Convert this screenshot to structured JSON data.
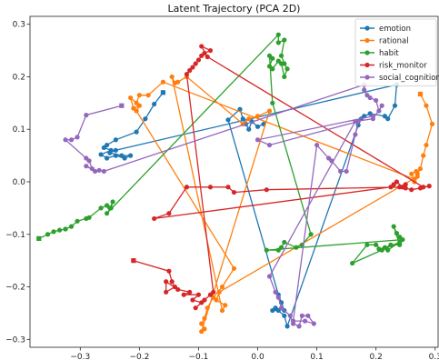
{
  "chart_data": {
    "type": "line",
    "title": "Latent Trajectory (PCA 2D)",
    "xlabel": "",
    "ylabel": "",
    "xlim": [
      -0.385,
      0.305
    ],
    "ylim": [
      -0.315,
      0.315
    ],
    "x_ticks": [
      -0.3,
      -0.2,
      -0.1,
      0.0,
      0.1,
      0.2,
      0.3
    ],
    "x_tick_labels": [
      "−0.3",
      "−0.2",
      "−0.1",
      "0.0",
      "0.1",
      "0.2",
      "0.3"
    ],
    "y_ticks": [
      -0.3,
      -0.2,
      -0.1,
      0.0,
      0.1,
      0.2,
      0.3
    ],
    "y_tick_labels": [
      "−0.3",
      "−0.2",
      "−0.1",
      "0.0",
      "0.1",
      "0.2",
      "0.3"
    ],
    "grid": false,
    "legend_position": "top-right",
    "series": [
      {
        "name": "emotion",
        "color": "#1f77b4",
        "points": [
          [
            -0.16,
            0.17
          ],
          [
            -0.175,
            0.148
          ],
          [
            -0.19,
            0.12
          ],
          [
            -0.205,
            0.095
          ],
          [
            -0.24,
            0.08
          ],
          [
            -0.255,
            0.07
          ],
          [
            -0.26,
            0.065
          ],
          [
            -0.248,
            0.06
          ],
          [
            -0.265,
            0.052
          ],
          [
            -0.255,
            0.045
          ],
          [
            -0.24,
            0.05
          ],
          [
            -0.225,
            0.045
          ],
          [
            -0.215,
            0.05
          ],
          [
            -0.23,
            0.05
          ],
          [
            -0.25,
            0.055
          ],
          [
            -0.24,
            0.06
          ],
          [
            0.235,
            0.185
          ],
          [
            0.232,
            0.145
          ],
          [
            0.22,
            0.12
          ],
          [
            0.215,
            0.125
          ],
          [
            0.19,
            0.13
          ],
          [
            0.18,
            0.125
          ],
          [
            0.175,
            0.12
          ],
          [
            0.17,
            0.108
          ],
          [
            0.05,
            -0.275
          ],
          [
            0.045,
            -0.255
          ],
          [
            0.035,
            -0.245
          ],
          [
            0.025,
            -0.245
          ],
          [
            0.03,
            -0.24
          ],
          [
            0.045,
            -0.245
          ],
          [
            0.04,
            -0.23
          ],
          [
            0.035,
            -0.215
          ],
          [
            -0.05,
            0.118
          ],
          [
            -0.03,
            0.138
          ],
          [
            -0.025,
            0.12
          ],
          [
            -0.02,
            0.11
          ],
          [
            -0.015,
            0.1
          ],
          [
            -0.01,
            0.115
          ],
          [
            0.0,
            0.105
          ],
          [
            0.01,
            0.11
          ]
        ]
      },
      {
        "name": "rational",
        "color": "#ff7f0e",
        "points": [
          [
            0.275,
            0.167
          ],
          [
            0.285,
            0.145
          ],
          [
            0.295,
            0.11
          ],
          [
            0.285,
            0.07
          ],
          [
            0.28,
            0.05
          ],
          [
            0.275,
            0.025
          ],
          [
            0.27,
            0.015
          ],
          [
            0.265,
            0.005
          ],
          [
            -0.16,
            0.19
          ],
          [
            -0.185,
            0.165
          ],
          [
            -0.2,
            0.165
          ],
          [
            -0.205,
            0.15
          ],
          [
            -0.215,
            0.16
          ],
          [
            -0.21,
            0.14
          ],
          [
            -0.2,
            0.145
          ],
          [
            -0.205,
            0.135
          ],
          [
            -0.04,
            -0.165
          ],
          [
            -0.06,
            -0.2
          ],
          [
            -0.075,
            -0.22
          ],
          [
            -0.085,
            -0.24
          ],
          [
            -0.09,
            -0.26
          ],
          [
            -0.095,
            -0.27
          ],
          [
            -0.09,
            -0.28
          ],
          [
            -0.095,
            -0.285
          ],
          [
            0.02,
            0.135
          ],
          [
            0.0,
            0.125
          ],
          [
            -0.015,
            0.12
          ],
          [
            -0.025,
            0.11
          ],
          [
            -0.12,
            0.2
          ],
          [
            -0.135,
            0.19
          ],
          [
            -0.14,
            0.188
          ],
          [
            -0.145,
            0.2
          ],
          [
            -0.06,
            -0.245
          ],
          [
            -0.055,
            -0.235
          ],
          [
            -0.07,
            -0.225
          ],
          [
            -0.065,
            -0.21
          ],
          [
            0.27,
            0.01
          ],
          [
            0.265,
            0.0
          ],
          [
            0.26,
            0.015
          ],
          [
            0.268,
            0.02
          ]
        ]
      },
      {
        "name": "habit",
        "color": "#2ca02c",
        "points": [
          [
            -0.37,
            -0.108
          ],
          [
            -0.355,
            -0.1
          ],
          [
            -0.345,
            -0.095
          ],
          [
            -0.335,
            -0.092
          ],
          [
            -0.325,
            -0.09
          ],
          [
            -0.315,
            -0.085
          ],
          [
            -0.305,
            -0.075
          ],
          [
            -0.29,
            -0.07
          ],
          [
            -0.285,
            -0.068
          ],
          [
            -0.265,
            -0.05
          ],
          [
            -0.255,
            -0.045
          ],
          [
            -0.25,
            -0.05
          ],
          [
            -0.245,
            -0.038
          ],
          [
            -0.248,
            -0.05
          ],
          [
            -0.255,
            -0.06
          ],
          [
            0.035,
            0.28
          ],
          [
            0.035,
            0.265
          ],
          [
            0.045,
            0.27
          ],
          [
            0.04,
            0.24
          ],
          [
            0.045,
            0.225
          ],
          [
            0.05,
            0.215
          ],
          [
            0.045,
            0.2
          ],
          [
            0.04,
            0.225
          ],
          [
            0.035,
            0.23
          ],
          [
            0.025,
            0.215
          ],
          [
            0.02,
            0.22
          ],
          [
            0.025,
            0.235
          ],
          [
            0.02,
            0.24
          ],
          [
            0.025,
            0.15
          ],
          [
            0.09,
            -0.1
          ],
          [
            0.075,
            -0.12
          ],
          [
            0.065,
            -0.125
          ],
          [
            0.045,
            -0.115
          ],
          [
            0.04,
            -0.125
          ],
          [
            0.035,
            -0.13
          ],
          [
            0.015,
            -0.13
          ],
          [
            0.245,
            -0.11
          ],
          [
            0.24,
            -0.105
          ],
          [
            0.235,
            -0.098
          ],
          [
            0.23,
            -0.085
          ],
          [
            0.24,
            -0.12
          ],
          [
            0.225,
            -0.12
          ],
          [
            0.21,
            -0.13
          ],
          [
            0.2,
            -0.12
          ],
          [
            0.185,
            -0.12
          ],
          [
            0.16,
            -0.155
          ],
          [
            0.24,
            -0.115
          ],
          [
            0.22,
            -0.13
          ],
          [
            0.215,
            -0.125
          ],
          [
            0.205,
            -0.128
          ]
        ]
      },
      {
        "name": "risk_monitor",
        "color": "#d62728",
        "points": [
          [
            -0.21,
            -0.15
          ],
          [
            -0.15,
            -0.17
          ],
          [
            -0.145,
            -0.19
          ],
          [
            -0.14,
            -0.2
          ],
          [
            -0.155,
            -0.21
          ],
          [
            -0.155,
            -0.19
          ],
          [
            -0.135,
            -0.205
          ],
          [
            -0.115,
            -0.21
          ],
          [
            -0.125,
            -0.215
          ],
          [
            -0.1,
            -0.215
          ],
          [
            -0.11,
            -0.225
          ],
          [
            -0.095,
            -0.23
          ],
          [
            -0.105,
            -0.24
          ],
          [
            -0.09,
            -0.225
          ],
          [
            -0.08,
            -0.215
          ],
          [
            -0.075,
            -0.21
          ],
          [
            -0.12,
            0.205
          ],
          [
            -0.115,
            0.212
          ],
          [
            -0.11,
            0.218
          ],
          [
            -0.105,
            0.225
          ],
          [
            -0.1,
            0.232
          ],
          [
            -0.095,
            0.24
          ],
          [
            -0.09,
            0.245
          ],
          [
            -0.08,
            0.25
          ],
          [
            -0.095,
            0.258
          ],
          [
            -0.085,
            0.238
          ],
          [
            0.28,
            -0.01
          ],
          [
            0.29,
            -0.008
          ],
          [
            0.275,
            -0.012
          ],
          [
            0.26,
            -0.015
          ],
          [
            0.25,
            -0.012
          ],
          [
            0.245,
            -0.01
          ],
          [
            0.235,
            0.0
          ],
          [
            0.23,
            -0.005
          ],
          [
            0.225,
            -0.01
          ],
          [
            -0.175,
            -0.07
          ],
          [
            -0.15,
            -0.06
          ],
          [
            -0.12,
            -0.01
          ],
          [
            -0.08,
            -0.01
          ],
          [
            -0.05,
            -0.01
          ],
          [
            -0.04,
            -0.02
          ],
          [
            0.015,
            -0.015
          ],
          [
            0.24,
            -0.01
          ],
          [
            0.25,
            -0.005
          ]
        ]
      },
      {
        "name": "social_cognition",
        "color": "#9467bd",
        "points": [
          [
            -0.23,
            0.145
          ],
          [
            -0.29,
            0.127
          ],
          [
            -0.305,
            0.085
          ],
          [
            -0.315,
            0.08
          ],
          [
            -0.325,
            0.08
          ],
          [
            -0.29,
            0.045
          ],
          [
            -0.285,
            0.04
          ],
          [
            -0.28,
            0.025
          ],
          [
            -0.29,
            0.03
          ],
          [
            -0.275,
            0.02
          ],
          [
            -0.268,
            0.022
          ],
          [
            -0.26,
            0.02
          ],
          [
            0.18,
            0.185
          ],
          [
            0.18,
            0.175
          ],
          [
            0.185,
            0.165
          ],
          [
            0.19,
            0.16
          ],
          [
            0.2,
            0.155
          ],
          [
            0.205,
            0.135
          ],
          [
            0.21,
            0.145
          ],
          [
            0.195,
            0.12
          ],
          [
            0.165,
            0.115
          ],
          [
            0.02,
            -0.18
          ],
          [
            0.03,
            -0.21
          ],
          [
            0.035,
            -0.22
          ],
          [
            0.04,
            -0.24
          ],
          [
            0.055,
            -0.255
          ],
          [
            0.06,
            -0.27
          ],
          [
            0.07,
            -0.275
          ],
          [
            0.075,
            -0.255
          ],
          [
            0.085,
            -0.255
          ],
          [
            0.095,
            -0.27
          ],
          [
            0.08,
            -0.265
          ],
          [
            0.06,
            -0.265
          ],
          [
            0.1,
            0.07
          ],
          [
            0.12,
            0.045
          ],
          [
            0.125,
            0.04
          ],
          [
            0.14,
            0.02
          ],
          [
            0.15,
            0.02
          ],
          [
            0.165,
            0.09
          ],
          [
            0.17,
            0.115
          ],
          [
            0.02,
            0.07
          ],
          [
            0.0,
            0.08
          ],
          [
            0.195,
            0.125
          ]
        ]
      }
    ]
  }
}
